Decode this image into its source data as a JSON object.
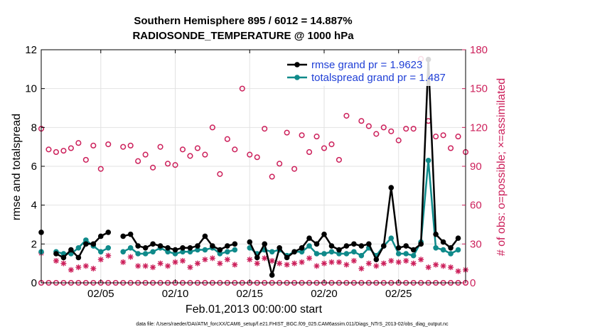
{
  "colors": {
    "rmse": "#000000",
    "spread": "#0f8a8a",
    "obs": "#cc1f5a",
    "legend_text": "#1f3fd6",
    "grid": "#e2e2e2"
  },
  "chart_data": {
    "type": "line",
    "title_line1": "Southern Hemisphere 895 / 6012 = 14.887%",
    "title_line2": "RADIOSONDE_TEMPERATURE @ 1000 hPa",
    "xlabel": "Feb.01,2013 00:00:00 start",
    "ylabel_left": "rmse and totalspread",
    "ylabel_right": "# of obs: o=possible; ×=assimilated",
    "footer": "data file: /Users/raeder/DAI/ATM_forcXX/CAM6_setup/f.e21.FHIST_BGC.f09_025.CAM6assim.011/Diags_NTrS_2013-02/obs_diag_output.nc",
    "xlim": [
      1.0,
      29.5
    ],
    "ylim_left": [
      0,
      12
    ],
    "ylim_right": [
      0,
      180
    ],
    "x_ticks": [
      5,
      10,
      15,
      20,
      25
    ],
    "x_ticklabels": [
      "02/05",
      "02/10",
      "02/15",
      "02/20",
      "02/25"
    ],
    "y_left_ticks": [
      0,
      2,
      4,
      6,
      8,
      10,
      12
    ],
    "y_left_ticklabels": [
      "0",
      "2",
      "4",
      "6",
      "8",
      "10",
      "12"
    ],
    "y_right_ticks": [
      0,
      30,
      60,
      90,
      120,
      150,
      180
    ],
    "y_right_ticklabels": [
      "0",
      "30",
      "60",
      "90",
      "120",
      "150",
      "180"
    ],
    "legend": [
      "rmse grand pr = 1.9623",
      "totalspread grand pr = 1.487"
    ],
    "x": [
      1.0,
      1.5,
      2.0,
      2.5,
      3.0,
      3.5,
      4.0,
      4.5,
      5.0,
      5.5,
      6.0,
      6.5,
      7.0,
      7.5,
      8.0,
      8.5,
      9.0,
      9.5,
      10.0,
      10.5,
      11.0,
      11.5,
      12.0,
      12.5,
      13.0,
      13.5,
      14.0,
      14.5,
      15.0,
      15.5,
      16.0,
      16.5,
      17.0,
      17.5,
      18.0,
      18.5,
      19.0,
      19.5,
      20.0,
      20.5,
      21.0,
      21.5,
      22.0,
      22.5,
      23.0,
      23.5,
      24.0,
      24.5,
      25.0,
      25.5,
      26.0,
      26.5,
      27.0,
      27.5,
      28.0,
      28.5,
      29.0,
      29.5
    ],
    "series": [
      {
        "name": "rmse",
        "values": [
          2.6,
          null,
          1.5,
          1.3,
          1.7,
          1.3,
          2.0,
          2.0,
          2.4,
          2.6,
          null,
          2.4,
          2.5,
          1.9,
          1.8,
          2.0,
          1.9,
          1.8,
          1.7,
          1.8,
          1.8,
          1.9,
          2.4,
          1.9,
          1.7,
          1.9,
          2.0,
          null,
          2.1,
          1.3,
          2.0,
          0.4,
          1.8,
          1.3,
          1.6,
          1.8,
          2.3,
          2.0,
          2.5,
          1.9,
          1.7,
          1.9,
          2.0,
          1.9,
          2.0,
          1.2,
          1.9,
          4.9,
          1.8,
          1.9,
          1.7,
          2.0,
          11.5,
          2.5,
          2.1,
          1.8,
          2.3,
          null
        ]
      },
      {
        "name": "totalspread",
        "values": [
          1.6,
          null,
          1.6,
          1.5,
          1.5,
          1.8,
          2.2,
          1.9,
          1.6,
          1.8,
          null,
          1.6,
          1.8,
          1.5,
          1.5,
          1.6,
          1.8,
          1.6,
          1.5,
          1.6,
          1.6,
          1.7,
          1.7,
          1.8,
          1.5,
          1.6,
          1.7,
          null,
          1.8,
          1.5,
          1.7,
          1.6,
          1.7,
          1.4,
          1.6,
          1.6,
          1.9,
          1.5,
          1.5,
          1.6,
          1.5,
          1.5,
          1.6,
          1.4,
          1.8,
          1.4,
          1.9,
          2.3,
          1.5,
          1.5,
          1.4,
          2.1,
          6.3,
          1.8,
          1.7,
          1.5,
          1.7,
          null
        ]
      },
      {
        "name": "obs_possible",
        "values": [
          119,
          103,
          101,
          102,
          104,
          108,
          95,
          106,
          88,
          107,
          null,
          105,
          106,
          94,
          99,
          89,
          105,
          92,
          91,
          103,
          98,
          104,
          99,
          120,
          84,
          111,
          103,
          150,
          99,
          97,
          119,
          82,
          92,
          116,
          88,
          114,
          101,
          113,
          104,
          107,
          95,
          129,
          null,
          125,
          121,
          115,
          120,
          117,
          110,
          119,
          119,
          173,
          125,
          113,
          114,
          104,
          113,
          101
        ]
      },
      {
        "name": "obs_assimilated",
        "values": [
          23,
          null,
          17,
          15,
          10,
          12,
          13,
          11,
          18,
          21,
          null,
          16,
          20,
          13,
          13,
          12,
          15,
          13,
          16,
          17,
          12,
          15,
          18,
          19,
          15,
          18,
          14,
          null,
          18,
          15,
          19,
          17,
          15,
          14,
          15,
          16,
          19,
          13,
          15,
          16,
          16,
          14,
          17,
          11,
          15,
          13,
          15,
          17,
          16,
          17,
          15,
          18,
          12,
          14,
          13,
          12,
          9,
          10
        ]
      }
    ]
  }
}
